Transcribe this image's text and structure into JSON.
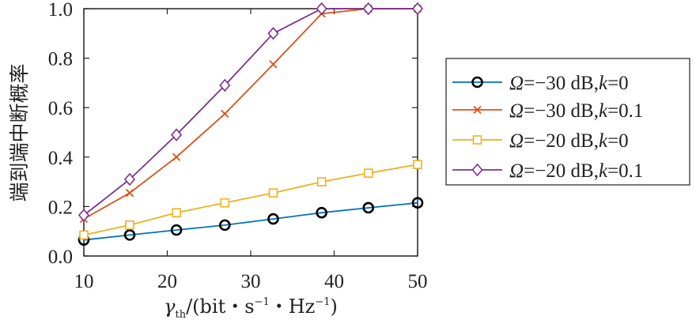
{
  "chart_data": {
    "type": "line",
    "xlabel": "γth/(bit・s−1・Hz−1)",
    "xlabel_parts": {
      "symbol": "γ",
      "subscript": "th",
      "rest_1": "/(bit・s",
      "sup_1": "−1",
      "rest_2": "・Hz",
      "sup_2": "−1",
      "rest_3": ")"
    },
    "ylabel": "端到端中断概率",
    "xlim": [
      10,
      50
    ],
    "ylim": [
      0,
      1.0
    ],
    "xticks": [
      "10",
      "20",
      "30",
      "40",
      "50"
    ],
    "yticks": [
      "0.0",
      "0.2",
      "0.4",
      "0.6",
      "0.8",
      "1.0"
    ],
    "grid": false,
    "legend_position": "right",
    "x": [
      10,
      15.5,
      21.1,
      26.9,
      32.7,
      38.5,
      44.1,
      50
    ],
    "series": [
      {
        "name": "Ω=−30 dB,k=0",
        "name_parts": {
          "sym": "Ω",
          "mid": "=−30 dB,",
          "k": "k",
          "end": "=0"
        },
        "color": "#0072BD",
        "marker": "circle",
        "values": [
          0.065,
          0.085,
          0.105,
          0.125,
          0.15,
          0.175,
          0.195,
          0.215
        ]
      },
      {
        "name": "Ω=−30 dB,k=0.1",
        "name_parts": {
          "sym": "Ω",
          "mid": "=−30 dB,",
          "k": "k",
          "end": "=0.1"
        },
        "color": "#D95319",
        "marker": "x",
        "values": [
          0.15,
          0.255,
          0.4,
          0.575,
          0.775,
          0.98,
          1.0,
          1.0
        ]
      },
      {
        "name": "Ω=−20 dB,k=0",
        "name_parts": {
          "sym": "Ω",
          "mid": "=−20 dB,",
          "k": "k",
          "end": "=0"
        },
        "color": "#EDB120",
        "marker": "square",
        "values": [
          0.085,
          0.125,
          0.175,
          0.215,
          0.255,
          0.3,
          0.335,
          0.37
        ]
      },
      {
        "name": "Ω=−20 dB,k=0.1",
        "name_parts": {
          "sym": "Ω",
          "mid": "=−20 dB,",
          "k": "k",
          "end": "=0.1"
        },
        "color": "#7E2F8E",
        "marker": "diamond",
        "values": [
          0.165,
          0.31,
          0.49,
          0.69,
          0.9,
          1.0,
          1.0,
          1.0
        ]
      }
    ]
  }
}
